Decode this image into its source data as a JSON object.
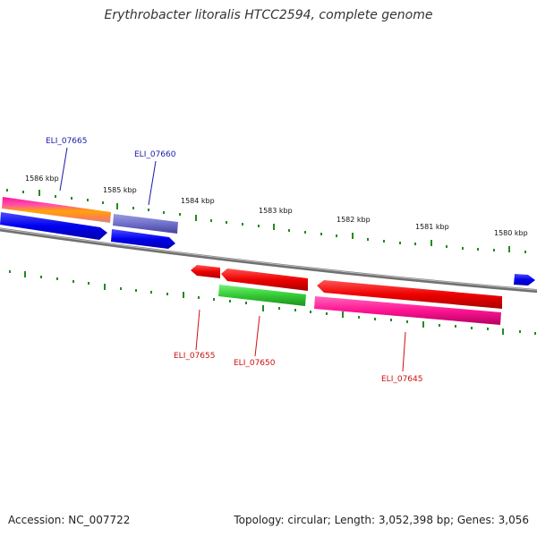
{
  "title": "Erythrobacter litoralis HTCC2594, complete genome",
  "accession": "Accession: NC_007722",
  "summary": "Topology: circular; Length: 3,052,398 bp; Genes: 3,056",
  "ticks": [
    {
      "label": "1586 kbp"
    },
    {
      "label": "1585 kbp"
    },
    {
      "label": "1584 kbp"
    },
    {
      "label": "1583 kbp"
    },
    {
      "label": "1582 kbp"
    },
    {
      "label": "1581 kbp"
    },
    {
      "label": "1580 kbp"
    }
  ],
  "genes": [
    {
      "label": "ELI_07665",
      "color": "#1a1aaa",
      "strand": "forward"
    },
    {
      "label": "ELI_07660",
      "color": "#1a1aaa",
      "strand": "forward"
    },
    {
      "label": "ELI_07655",
      "color": "#cc1111",
      "strand": "reverse"
    },
    {
      "label": "ELI_07650",
      "color": "#cc1111",
      "strand": "reverse"
    },
    {
      "label": "ELI_07645",
      "color": "#cc1111",
      "strand": "reverse"
    }
  ],
  "colors": {
    "backbone": "#808080",
    "tick": "#228b22",
    "forward_gene": "#0000ee",
    "reverse_gene": "#ee0000",
    "rna_gene": "#ff1493",
    "green_feature": "#33cc33",
    "purple_feature": "#7070cc"
  }
}
